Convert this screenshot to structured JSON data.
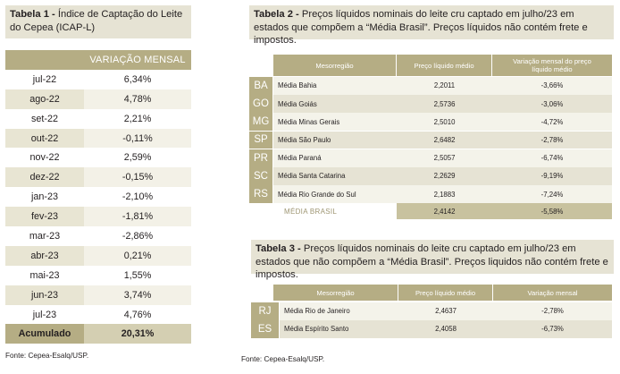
{
  "table1": {
    "caption_bold": "Tabela 1 -",
    "caption_text": " Índice de Captação do Leite do Cepea (ICAP-L)",
    "header": "VARIAÇÃO MENSAL",
    "rows": [
      {
        "month": "jul-22",
        "value": "6,34%"
      },
      {
        "month": "ago-22",
        "value": "4,78%"
      },
      {
        "month": "set-22",
        "value": "2,21%"
      },
      {
        "month": "out-22",
        "value": "-0,11%"
      },
      {
        "month": "nov-22",
        "value": "2,59%"
      },
      {
        "month": "dez-22",
        "value": "-0,15%"
      },
      {
        "month": "jan-23",
        "value": "-2,10%"
      },
      {
        "month": "fev-23",
        "value": "-1,81%"
      },
      {
        "month": "mar-23",
        "value": "-2,86%"
      },
      {
        "month": "abr-23",
        "value": "0,21%"
      },
      {
        "month": "mai-23",
        "value": "1,55%"
      },
      {
        "month": "jun-23",
        "value": "3,74%"
      },
      {
        "month": "jul-23",
        "value": "4,76%"
      }
    ],
    "total_label": "Acumulado",
    "total_value": "20,31%",
    "source": "Fonte: Cepea-Esalq/USP."
  },
  "table2": {
    "caption_bold": "Tabela 2 -",
    "caption_text": " Preços líquidos nominais do leite cru captado em julho/23 em estados que compõem a “Média Brasil”. Preços líquidos não contém frete e impostos.",
    "headers": [
      "Mesorregião",
      "Preço líquido médio",
      "Variação mensal do preço líquido médio"
    ],
    "rows": [
      {
        "state": "BA",
        "region": "Média Bahia",
        "price": "2,2011",
        "variation": "-3,66%"
      },
      {
        "state": "GO",
        "region": "Média Goiás",
        "price": "2,5736",
        "variation": "-3,06%"
      },
      {
        "state": "MG",
        "region": "Média Minas Gerais",
        "price": "2,5010",
        "variation": "-4,72%"
      },
      {
        "state": "SP",
        "region": "Média São Paulo",
        "price": "2,6482",
        "variation": "-2,78%"
      },
      {
        "state": "PR",
        "region": "Média Paraná",
        "price": "2,5057",
        "variation": "-6,74%"
      },
      {
        "state": "SC",
        "region": "Média Santa Catarina",
        "price": "2,2629",
        "variation": "-9,19%"
      },
      {
        "state": "RS",
        "region": "Média Rio Grande do Sul",
        "price": "2,1883",
        "variation": "-7,24%"
      }
    ],
    "total": {
      "region": "MÉDIA BRASIL",
      "price": "2,4142",
      "variation": "-5,58%"
    }
  },
  "table3": {
    "caption_bold": "Tabela 3 -",
    "caption_text": " Preços líquidos nominais do leite cru captado em julho/23 em estados que não compõem a “Média Brasil”. Preços liquidos não contém frete e impostos.",
    "headers": [
      "Mesorregião",
      "Preço líquido médio",
      "Variação mensal"
    ],
    "rows": [
      {
        "state": "RJ",
        "region": "Média Rio de Janeiro",
        "price": "2,4637",
        "variation": "-2,78%"
      },
      {
        "state": "ES",
        "region": "Média Espírito Santo",
        "price": "2,4058",
        "variation": "-6,73%"
      }
    ],
    "source": "Fonte: Cepea-Esalq/USP."
  }
}
